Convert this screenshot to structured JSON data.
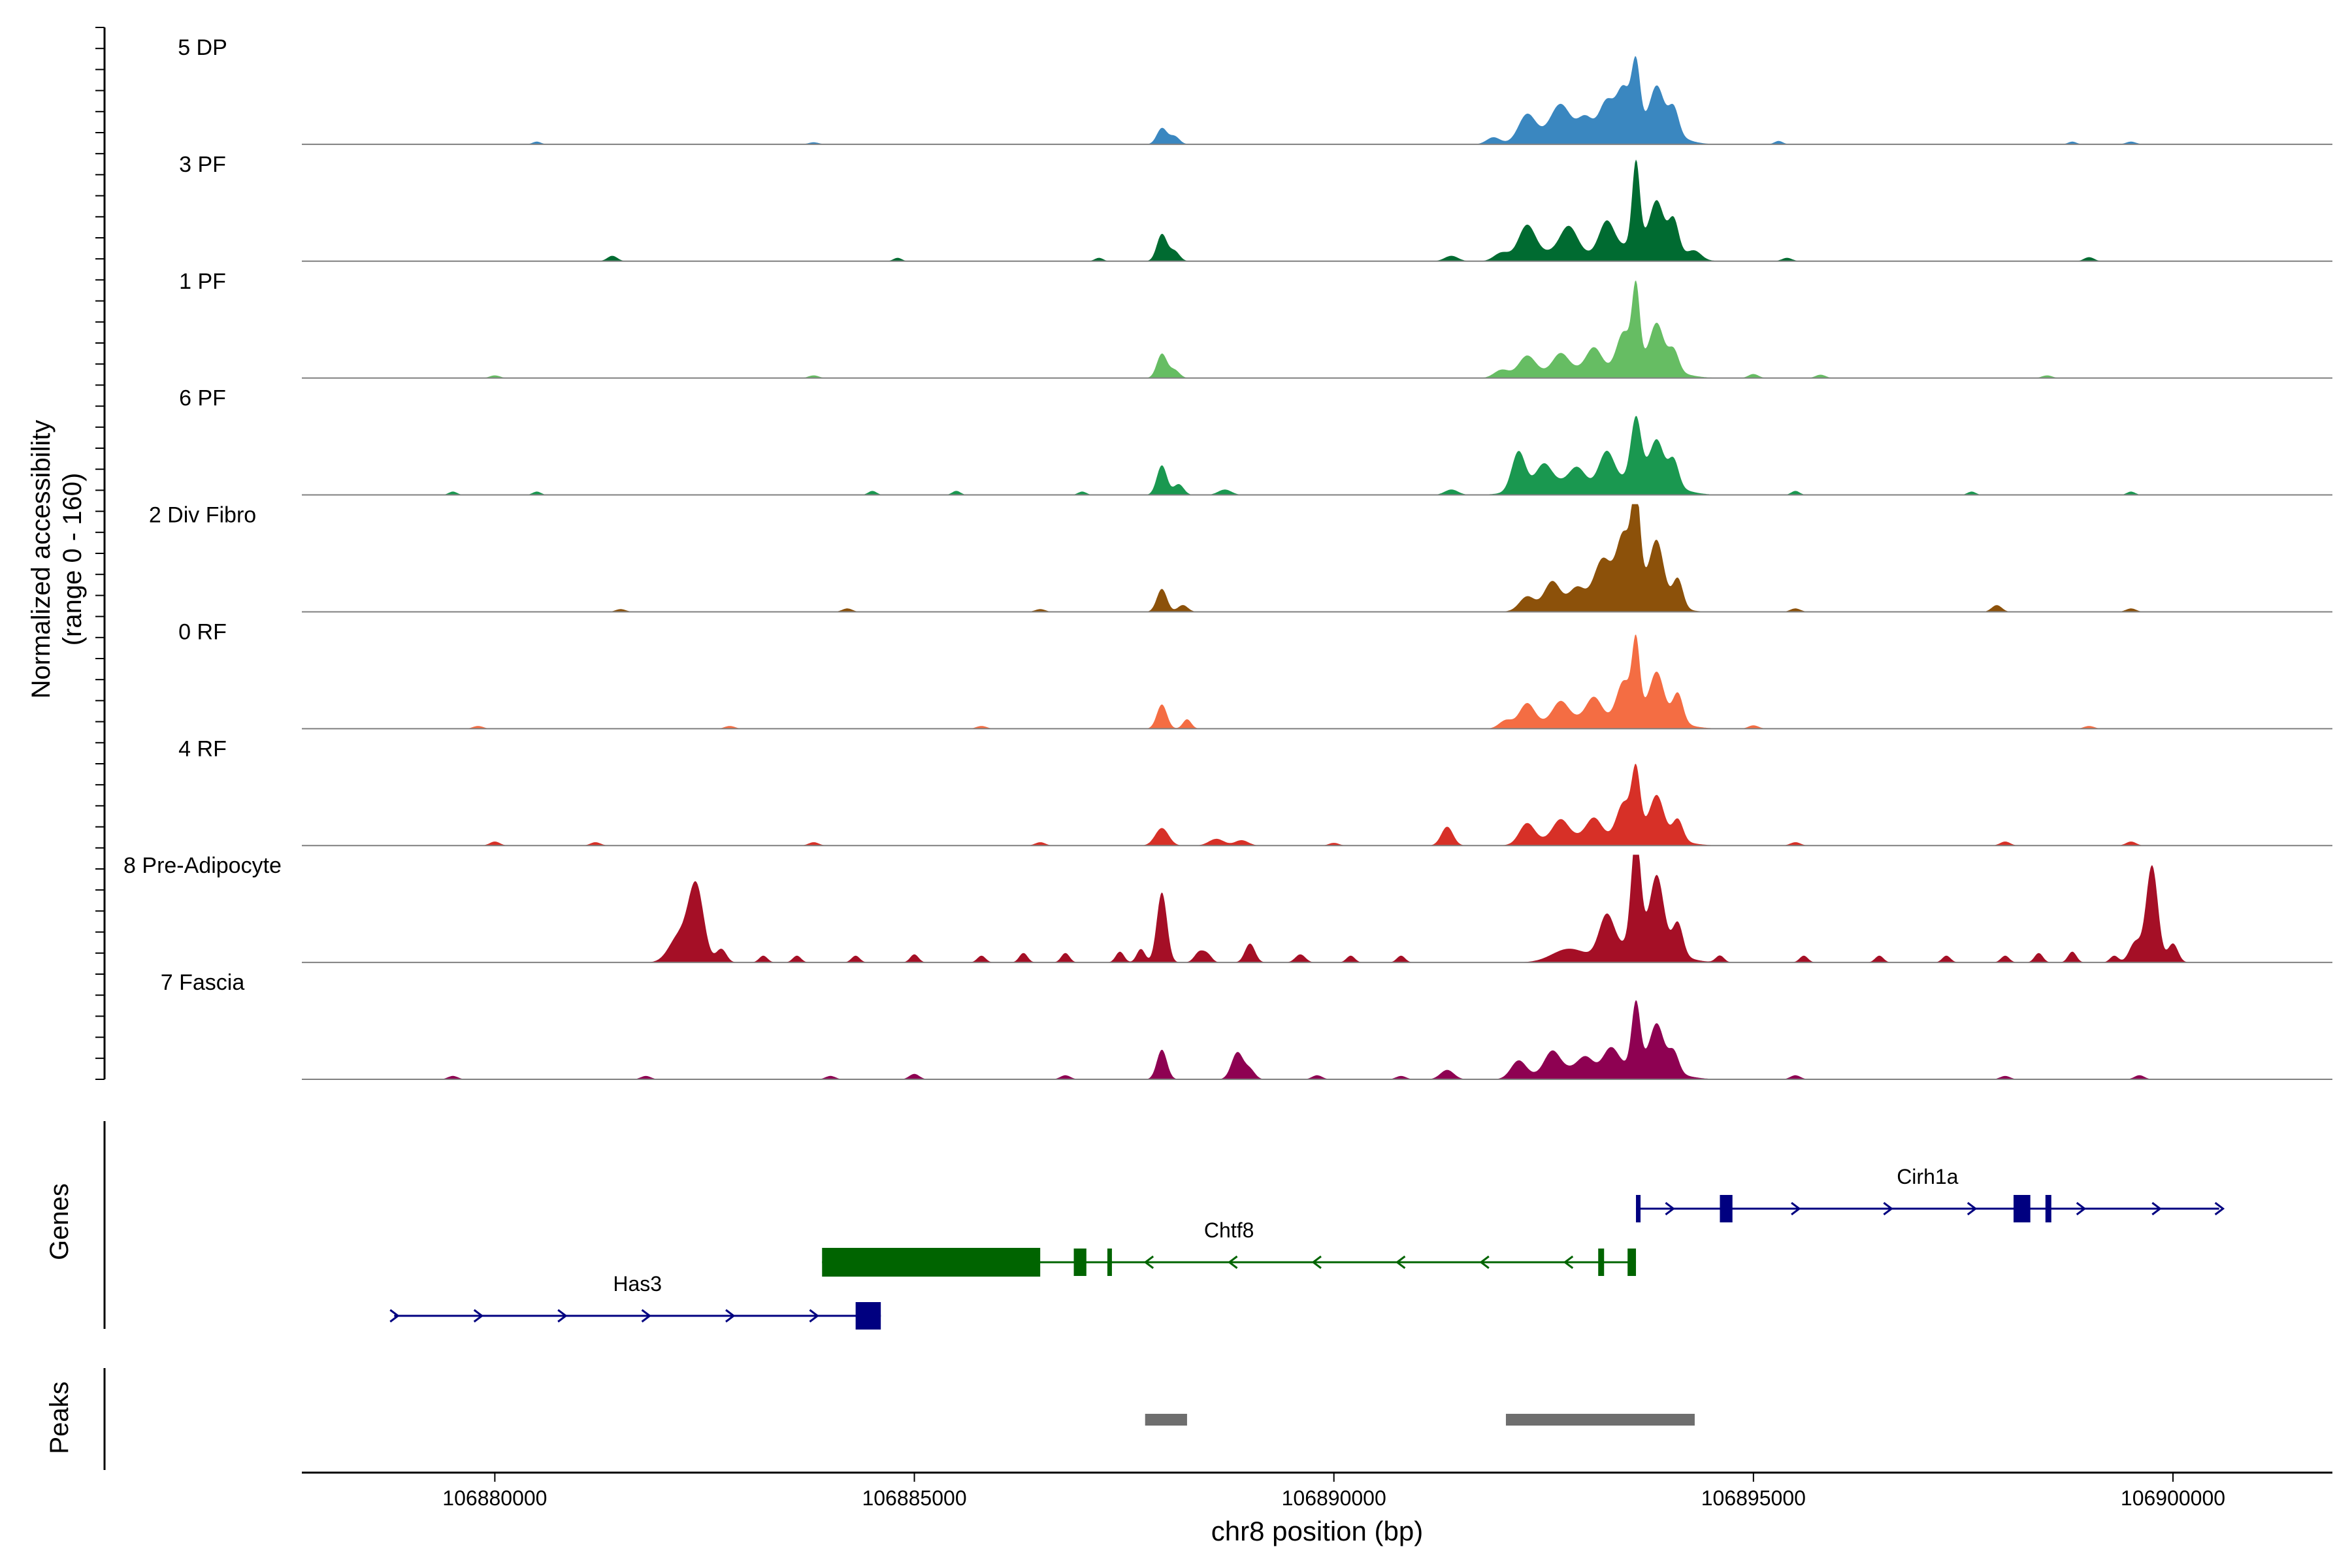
{
  "chart_data": {
    "type": "area",
    "chromosome": "chr8",
    "xrange": [
      106877700,
      106901900
    ],
    "xlabel": "chr8 position (bp)",
    "xticks": [
      106880000,
      106885000,
      106890000,
      106895000,
      106900000
    ],
    "ylabel_line1": "Normalized accessibility",
    "ylabel_line2": "(range 0 - 160)",
    "yrange": [
      0,
      160
    ],
    "tracks": [
      {
        "name": "5 DP",
        "color": "#3a87c0",
        "peaks": [
          [
            106887950,
            24,
            60
          ],
          [
            106888100,
            12,
            60
          ],
          [
            106891900,
            10,
            80
          ],
          [
            106892300,
            38,
            100
          ],
          [
            106892700,
            42,
            110
          ],
          [
            106893000,
            30,
            90
          ],
          [
            106893250,
            58,
            90
          ],
          [
            106893450,
            70,
            80
          ],
          [
            106893600,
            96,
            50
          ],
          [
            106893850,
            58,
            80
          ],
          [
            106894050,
            38,
            60
          ],
          [
            106893800,
            30,
            250
          ],
          [
            106892700,
            18,
            300
          ]
        ],
        "noise": [
          [
            106880500,
            4,
            50
          ],
          [
            106883800,
            3,
            60
          ],
          [
            106895300,
            5,
            50
          ],
          [
            106898800,
            4,
            50
          ],
          [
            106899500,
            4,
            60
          ]
        ]
      },
      {
        "name": "3 PF",
        "color": "#006b31",
        "peaks": [
          [
            106887950,
            40,
            60
          ],
          [
            106888100,
            15,
            60
          ],
          [
            106891400,
            8,
            80
          ],
          [
            106892000,
            12,
            90
          ],
          [
            106892300,
            48,
            100
          ],
          [
            106892800,
            38,
            100
          ],
          [
            106893250,
            48,
            90
          ],
          [
            106893600,
            122,
            45
          ],
          [
            106893850,
            64,
            80
          ],
          [
            106894050,
            48,
            60
          ],
          [
            106893700,
            30,
            300
          ],
          [
            106892700,
            15,
            300
          ],
          [
            106894300,
            12,
            80
          ]
        ],
        "noise": [
          [
            106881400,
            8,
            60
          ],
          [
            106884800,
            5,
            50
          ],
          [
            106887200,
            5,
            50
          ],
          [
            106895400,
            5,
            60
          ],
          [
            106899000,
            6,
            60
          ]
        ]
      },
      {
        "name": "1 PF",
        "color": "#66bd63",
        "peaks": [
          [
            106887950,
            36,
            60
          ],
          [
            106888100,
            12,
            60
          ],
          [
            106892000,
            12,
            90
          ],
          [
            106892300,
            30,
            100
          ],
          [
            106892700,
            24,
            90
          ],
          [
            106893100,
            34,
            90
          ],
          [
            106893450,
            50,
            80
          ],
          [
            106893600,
            112,
            45
          ],
          [
            106893850,
            60,
            80
          ],
          [
            106894050,
            30,
            60
          ],
          [
            106893700,
            25,
            300
          ],
          [
            106892800,
            14,
            300
          ]
        ],
        "noise": [
          [
            106880000,
            4,
            60
          ],
          [
            106883800,
            4,
            60
          ],
          [
            106895000,
            6,
            60
          ],
          [
            106895800,
            5,
            60
          ],
          [
            106898500,
            4,
            60
          ]
        ]
      },
      {
        "name": "6 PF",
        "color": "#1a9850",
        "peaks": [
          [
            106887950,
            44,
            60
          ],
          [
            106888150,
            16,
            60
          ],
          [
            106888700,
            8,
            80
          ],
          [
            106891400,
            8,
            80
          ],
          [
            106892200,
            58,
            80
          ],
          [
            106892500,
            30,
            90
          ],
          [
            106892900,
            24,
            90
          ],
          [
            106893250,
            50,
            90
          ],
          [
            106893600,
            88,
            60
          ],
          [
            106893850,
            56,
            80
          ],
          [
            106894050,
            38,
            60
          ],
          [
            106893700,
            30,
            300
          ],
          [
            106892700,
            20,
            350
          ]
        ],
        "noise": [
          [
            106879500,
            5,
            50
          ],
          [
            106880500,
            5,
            50
          ],
          [
            106884500,
            6,
            50
          ],
          [
            106885500,
            6,
            50
          ],
          [
            106887000,
            5,
            50
          ],
          [
            106895500,
            6,
            50
          ],
          [
            106897600,
            5,
            50
          ],
          [
            106899500,
            5,
            50
          ]
        ]
      },
      {
        "name": "2 Div Fibro",
        "color": "#8c510a",
        "peaks": [
          [
            106887950,
            34,
            60
          ],
          [
            106888200,
            10,
            60
          ],
          [
            106892300,
            20,
            90
          ],
          [
            106892600,
            36,
            90
          ],
          [
            106892900,
            24,
            90
          ],
          [
            106893200,
            60,
            100
          ],
          [
            106893450,
            80,
            80
          ],
          [
            106893600,
            140,
            50
          ],
          [
            106893850,
            80,
            80
          ],
          [
            106894100,
            42,
            60
          ],
          [
            106893600,
            40,
            280
          ],
          [
            106892800,
            12,
            300
          ]
        ],
        "noise": [
          [
            106881500,
            4,
            60
          ],
          [
            106884200,
            5,
            60
          ],
          [
            106886500,
            4,
            60
          ],
          [
            106895500,
            5,
            60
          ],
          [
            106897900,
            10,
            60
          ],
          [
            106899500,
            5,
            60
          ]
        ]
      },
      {
        "name": "0 RF",
        "color": "#f46d43",
        "peaks": [
          [
            106887950,
            36,
            60
          ],
          [
            106888250,
            14,
            50
          ],
          [
            106892050,
            12,
            80
          ],
          [
            106892300,
            34,
            90
          ],
          [
            106892700,
            26,
            90
          ],
          [
            106893100,
            34,
            90
          ],
          [
            106893450,
            50,
            80
          ],
          [
            106893600,
            104,
            45
          ],
          [
            106893850,
            60,
            80
          ],
          [
            106894100,
            42,
            60
          ],
          [
            106893700,
            28,
            300
          ],
          [
            106892800,
            16,
            300
          ]
        ],
        "noise": [
          [
            106879800,
            4,
            60
          ],
          [
            106882800,
            4,
            60
          ],
          [
            106885800,
            4,
            60
          ],
          [
            106895000,
            5,
            60
          ],
          [
            106899000,
            4,
            60
          ]
        ]
      },
      {
        "name": "4 RF",
        "color": "#d73027",
        "peaks": [
          [
            106887950,
            26,
            80
          ],
          [
            106888600,
            10,
            90
          ],
          [
            106888900,
            8,
            80
          ],
          [
            106891350,
            28,
            70
          ],
          [
            106892300,
            30,
            90
          ],
          [
            106892700,
            26,
            90
          ],
          [
            106893100,
            30,
            90
          ],
          [
            106893450,
            46,
            80
          ],
          [
            106893600,
            90,
            50
          ],
          [
            106893850,
            54,
            80
          ],
          [
            106894100,
            30,
            60
          ],
          [
            106893700,
            24,
            300
          ],
          [
            106892800,
            14,
            300
          ]
        ],
        "noise": [
          [
            106880000,
            6,
            60
          ],
          [
            106881200,
            5,
            60
          ],
          [
            106883800,
            5,
            60
          ],
          [
            106886500,
            5,
            60
          ],
          [
            106890000,
            4,
            60
          ],
          [
            106895500,
            5,
            60
          ],
          [
            106898000,
            6,
            60
          ],
          [
            106899500,
            6,
            60
          ]
        ]
      },
      {
        "name": "8 Pre-Adipocyte",
        "color": "#a50f26",
        "peaks": [
          [
            106882400,
            110,
            90
          ],
          [
            106882200,
            40,
            120
          ],
          [
            106882700,
            20,
            60
          ],
          [
            106887950,
            104,
            60
          ],
          [
            106887700,
            20,
            50
          ],
          [
            106888400,
            16,
            60
          ],
          [
            106889000,
            28,
            60
          ],
          [
            106889600,
            12,
            60
          ],
          [
            106892800,
            20,
            200
          ],
          [
            106893250,
            60,
            90
          ],
          [
            106893600,
            160,
            55
          ],
          [
            106893850,
            100,
            80
          ],
          [
            106894100,
            46,
            60
          ],
          [
            106893700,
            34,
            300
          ],
          [
            106899750,
            144,
            70
          ],
          [
            106899550,
            30,
            70
          ],
          [
            106900000,
            28,
            60
          ]
        ],
        "noise": [
          [
            106883200,
            10,
            50
          ],
          [
            106883600,
            10,
            50
          ],
          [
            106884300,
            10,
            50
          ],
          [
            106885000,
            12,
            50
          ],
          [
            106885800,
            10,
            50
          ],
          [
            106886300,
            14,
            50
          ],
          [
            106886800,
            14,
            50
          ],
          [
            106887450,
            16,
            50
          ],
          [
            106888500,
            10,
            50
          ],
          [
            106890200,
            10,
            50
          ],
          [
            106890800,
            10,
            50
          ],
          [
            106894600,
            10,
            50
          ],
          [
            106895600,
            10,
            50
          ],
          [
            106896500,
            10,
            50
          ],
          [
            106897300,
            10,
            50
          ],
          [
            106898000,
            10,
            50
          ],
          [
            106898400,
            14,
            50
          ],
          [
            106898800,
            16,
            50
          ],
          [
            106899300,
            10,
            50
          ]
        ]
      },
      {
        "name": "7 Fascia",
        "color": "#8e0152",
        "peaks": [
          [
            106887950,
            44,
            60
          ],
          [
            106888850,
            40,
            70
          ],
          [
            106889000,
            14,
            60
          ],
          [
            106891350,
            14,
            80
          ],
          [
            106892200,
            26,
            90
          ],
          [
            106892600,
            30,
            90
          ],
          [
            106893000,
            20,
            90
          ],
          [
            106893300,
            34,
            90
          ],
          [
            106893600,
            94,
            50
          ],
          [
            106893850,
            62,
            80
          ],
          [
            106894050,
            30,
            60
          ],
          [
            106893700,
            24,
            300
          ],
          [
            106892800,
            16,
            300
          ]
        ],
        "noise": [
          [
            106879500,
            5,
            60
          ],
          [
            106881800,
            5,
            60
          ],
          [
            106884000,
            5,
            60
          ],
          [
            106885000,
            8,
            60
          ],
          [
            106886800,
            6,
            60
          ],
          [
            106889800,
            6,
            60
          ],
          [
            106890800,
            5,
            60
          ],
          [
            106895500,
            6,
            60
          ],
          [
            106898000,
            5,
            60
          ],
          [
            106899600,
            6,
            60
          ]
        ]
      }
    ],
    "genes_label": "Genes",
    "genes": [
      {
        "name": "Cirh1a",
        "strand": "+",
        "color": "#000080",
        "start": 106893600,
        "end": 106900550,
        "exons": [
          [
            106893600,
            106893650
          ],
          [
            106894600,
            106894750
          ],
          [
            106898100,
            106898300
          ],
          [
            106898480,
            106898550
          ]
        ],
        "arrows": [
          106894000,
          106895500,
          106896600,
          106897600,
          106898900,
          106899800,
          106900550
        ]
      },
      {
        "name": "Chtf8",
        "strand": "-",
        "color": "#006400",
        "start": 106883900,
        "end": 106893600,
        "exons": [
          [
            106883900,
            106886500
          ],
          [
            106886900,
            106887050
          ],
          [
            106887300,
            106887350
          ],
          [
            106893150,
            106893220
          ],
          [
            106893500,
            106893600
          ]
        ],
        "arrows": [
          106887800,
          106888800,
          106889800,
          106890800,
          106891800,
          106892800
        ]
      },
      {
        "name": "Has3",
        "strand": "+",
        "color": "#000080",
        "start": 106878800,
        "end": 106884600,
        "exons": [
          [
            106884300,
            106884600
          ]
        ],
        "arrows": [
          106878800,
          106879800,
          106880800,
          106881800,
          106882800,
          106883800
        ]
      }
    ],
    "peaks_label": "Peaks",
    "peak_regions": [
      [
        106887750,
        106888250
      ],
      [
        106892050,
        106894300
      ]
    ]
  }
}
